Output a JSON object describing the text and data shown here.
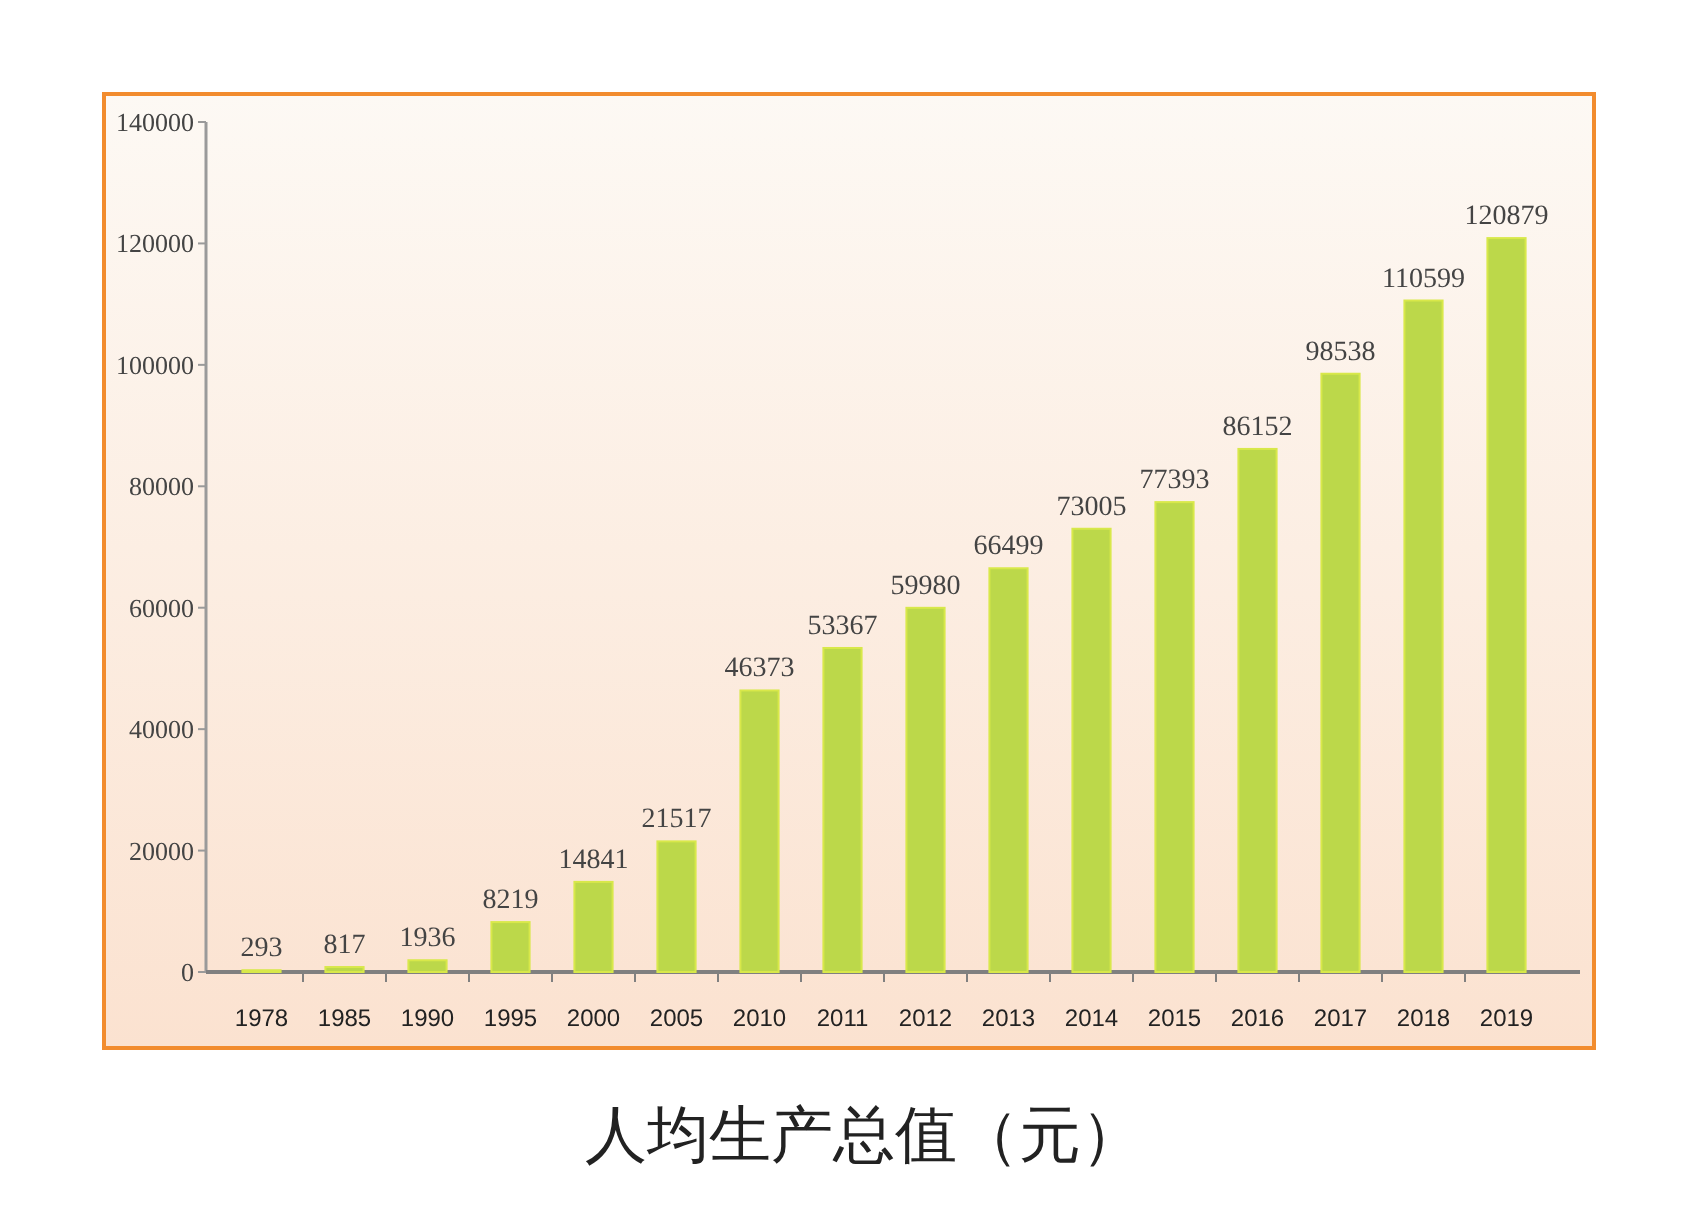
{
  "chart_data": {
    "type": "bar",
    "title": "人均生产总值（元）",
    "categories": [
      "1978",
      "1985",
      "1990",
      "1995",
      "2000",
      "2005",
      "2010",
      "2011",
      "2012",
      "2013",
      "2014",
      "2015",
      "2016",
      "2017",
      "2018",
      "2019"
    ],
    "values": [
      293,
      817,
      1936,
      8219,
      14841,
      21517,
      46373,
      53367,
      59980,
      66499,
      73005,
      77393,
      86152,
      98538,
      110599,
      120879
    ],
    "color": "#bcd84a",
    "ylim": [
      0,
      140000
    ],
    "yticks": [
      0,
      20000,
      40000,
      60000,
      80000,
      100000,
      120000,
      140000
    ],
    "data_labels": true
  }
}
